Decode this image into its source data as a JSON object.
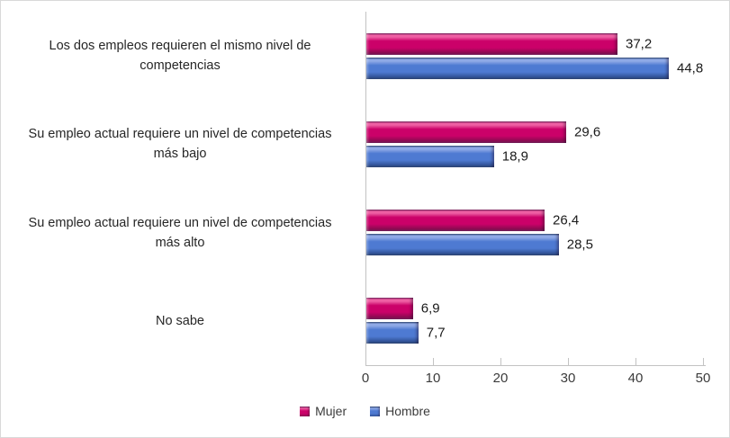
{
  "chart_data": {
    "type": "bar",
    "orientation": "horizontal",
    "title": "",
    "categories": [
      "Los dos empleos requieren el mismo nivel de competencias",
      "Su empleo actual requiere un nivel de competencias más bajo",
      "Su empleo actual requiere un nivel de competencias más alto",
      "No sabe"
    ],
    "category_lines": [
      [
        "Los dos empleos requieren el mismo nivel de",
        "competencias"
      ],
      [
        "Su empleo actual requiere un nivel de competencias",
        "más bajo"
      ],
      [
        "Su empleo actual requiere un nivel de competencias",
        "más alto"
      ],
      [
        "No sabe"
      ]
    ],
    "series": [
      {
        "name": "Mujer",
        "values": [
          37.2,
          29.6,
          26.4,
          6.9
        ],
        "value_labels": [
          "37,2",
          "29,6",
          "26,4",
          "6,9"
        ],
        "color": "#cb0169",
        "color_light": "#ee5fa3",
        "color_dark": "#8e0a52",
        "color_edge": "#6e1b55"
      },
      {
        "name": "Hombre",
        "values": [
          44.8,
          18.9,
          28.5,
          7.7
        ],
        "value_labels": [
          "44,8",
          "18,9",
          "28,5",
          "7,7"
        ],
        "color": "#4e7ad2",
        "color_light": "#8fa9e6",
        "color_dark": "#33549a",
        "color_edge": "#28406f"
      }
    ],
    "xlim": [
      0,
      50
    ],
    "x_ticks": [
      "0",
      "10",
      "20",
      "30",
      "40",
      "50"
    ],
    "grid": false,
    "legend": {
      "position": "bottom",
      "entries": [
        "Mujer",
        "Hombre"
      ]
    },
    "axis_color": "#c3c3c3",
    "border_color": "#d9d9d9",
    "text_color": "#3b3b3b",
    "value_label_color": "#1a1a1a"
  }
}
